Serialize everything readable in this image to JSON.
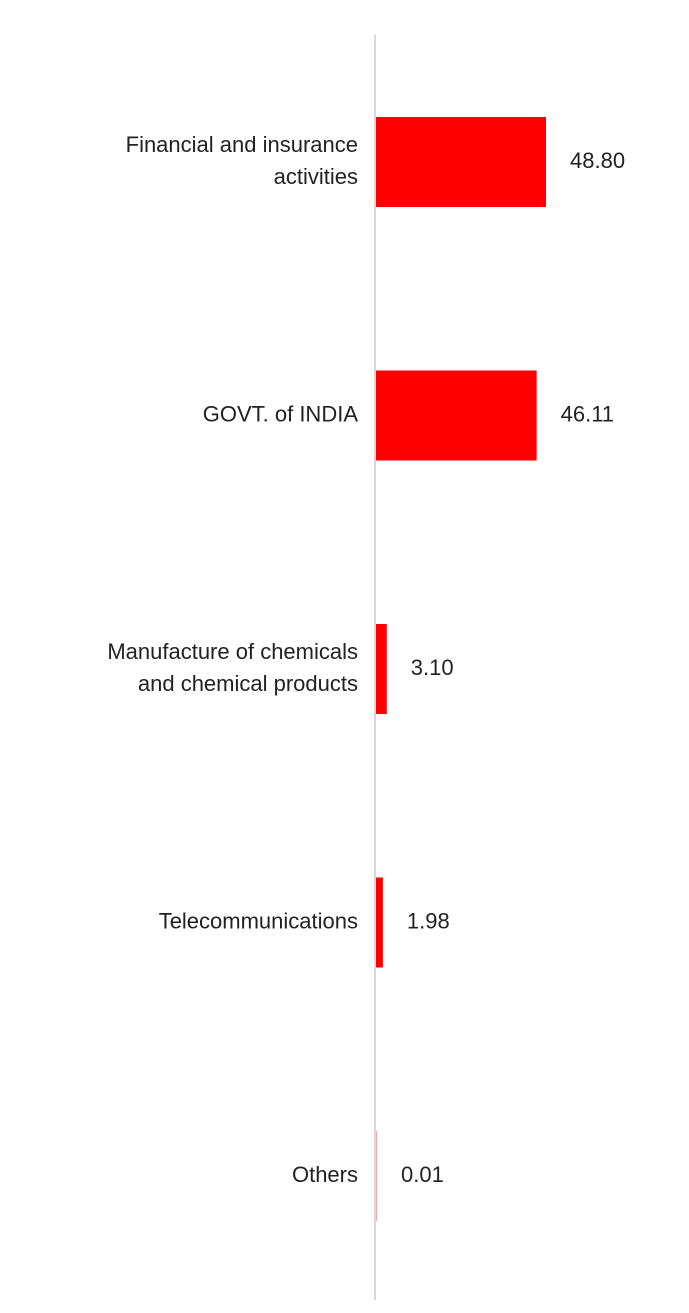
{
  "chart_data": {
    "type": "bar",
    "orientation": "horizontal",
    "categories": [
      [
        "Financial and insurance",
        "activities"
      ],
      [
        "GOVT. of INDIA"
      ],
      [
        "Manufacture of chemicals",
        "and chemical products"
      ],
      [
        "Telecommunications"
      ],
      [
        "Others"
      ]
    ],
    "values": [
      48.8,
      46.11,
      3.1,
      1.98,
      0.01
    ],
    "value_labels": [
      "48.80",
      "46.11",
      "3.10",
      "1.98",
      "0.01"
    ],
    "title": "",
    "xlabel": "",
    "ylabel": "",
    "xlim": [
      0,
      100
    ],
    "grid": false,
    "legend": "none",
    "bar_color": "#ff0000",
    "axis_color": "#d9d9d9",
    "text_color": "#222222"
  }
}
